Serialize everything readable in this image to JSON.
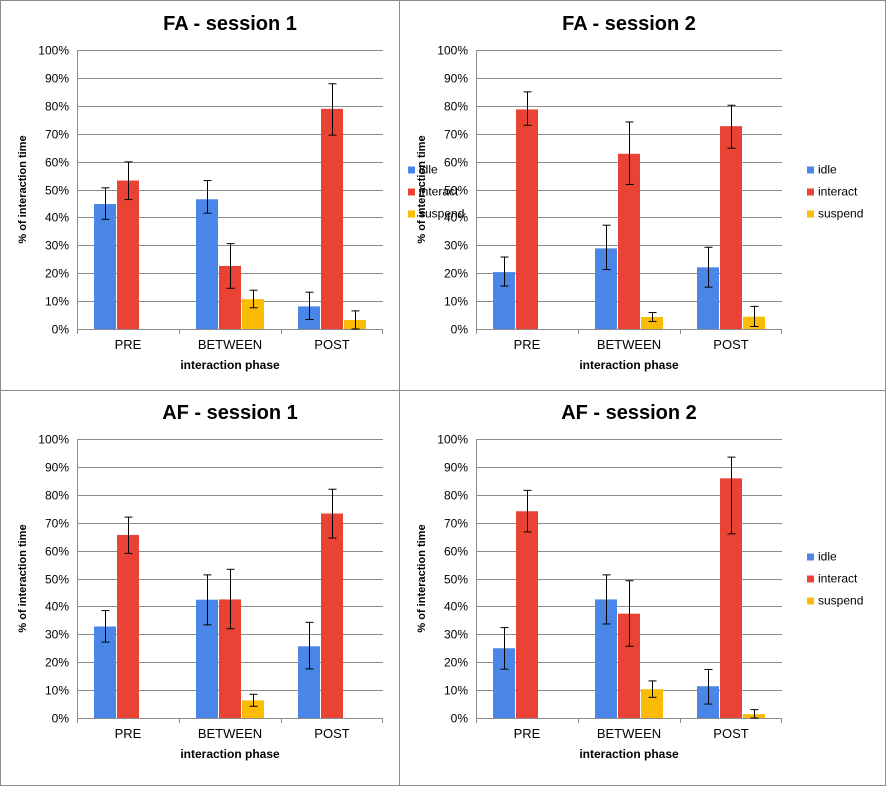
{
  "colors": {
    "idle": "#4a86e8",
    "interact": "#ea4335",
    "suspend": "#fbbc05"
  },
  "chart_data": [
    {
      "type": "bar",
      "title": "FA - session 1",
      "xlabel": "interaction phase",
      "ylabel": "% of interaction time",
      "ylim": [
        0,
        100
      ],
      "yticks": [
        "0%",
        "10%",
        "20%",
        "30%",
        "40%",
        "50%",
        "60%",
        "70%",
        "80%",
        "90%",
        "100%"
      ],
      "categories": [
        "PRE",
        "BETWEEN",
        "POST"
      ],
      "legend_position": "right",
      "grid": true,
      "series": [
        {
          "name": "idle",
          "values": [
            44.8,
            46.5,
            8.1
          ],
          "errors": [
            [
              39.3,
              50.6
            ],
            [
              41.5,
              53.2
            ],
            [
              3.4,
              13.2
            ]
          ]
        },
        {
          "name": "interact",
          "values": [
            53.2,
            22.6,
            78.9
          ],
          "errors": [
            [
              46.4,
              59.9
            ],
            [
              14.6,
              30.6
            ],
            [
              69.5,
              87.9
            ]
          ]
        },
        {
          "name": "suspend",
          "values": [
            0,
            10.7,
            3.2
          ],
          "errors": [
            null,
            [
              7.6,
              13.9
            ],
            [
              0,
              6.5
            ]
          ]
        }
      ]
    },
    {
      "type": "bar",
      "title": "FA - session 2",
      "xlabel": "interaction phase",
      "ylabel": "% of interaction time",
      "ylim": [
        0,
        100
      ],
      "yticks": [
        "0%",
        "10%",
        "20%",
        "30%",
        "40%",
        "50%",
        "60%",
        "70%",
        "80%",
        "90%",
        "100%"
      ],
      "categories": [
        "PRE",
        "BETWEEN",
        "POST"
      ],
      "legend_position": "right",
      "grid": true,
      "series": [
        {
          "name": "idle",
          "values": [
            20.4,
            28.9,
            22.1
          ],
          "errors": [
            [
              15.4,
              25.8
            ],
            [
              21.3,
              37.2
            ],
            [
              15.0,
              29.3
            ]
          ]
        },
        {
          "name": "interact",
          "values": [
            78.7,
            62.8,
            72.7
          ],
          "errors": [
            [
              73.0,
              85.0
            ],
            [
              51.8,
              74.2
            ],
            [
              64.8,
              80.2
            ]
          ]
        },
        {
          "name": "suspend",
          "values": [
            0,
            4.3,
            4.4
          ],
          "errors": [
            null,
            [
              2.7,
              5.9
            ],
            [
              0.9,
              8.1
            ]
          ]
        }
      ]
    },
    {
      "type": "bar",
      "title": "AF - session 1",
      "xlabel": "interaction phase",
      "ylabel": "% of interaction time",
      "ylim": [
        0,
        100
      ],
      "yticks": [
        "0%",
        "10%",
        "20%",
        "30%",
        "40%",
        "50%",
        "60%",
        "70%",
        "80%",
        "90%",
        "100%"
      ],
      "categories": [
        "PRE",
        "BETWEEN",
        "POST"
      ],
      "legend_position": "none",
      "grid": true,
      "series": [
        {
          "name": "idle",
          "values": [
            32.8,
            42.4,
            25.7
          ],
          "errors": [
            [
              27.2,
              38.5
            ],
            [
              33.4,
              51.3
            ],
            [
              17.6,
              34.3
            ]
          ]
        },
        {
          "name": "interact",
          "values": [
            65.6,
            42.5,
            73.3
          ],
          "errors": [
            [
              59.0,
              72.0
            ],
            [
              32.0,
              53.3
            ],
            [
              64.5,
              82.0
            ]
          ]
        },
        {
          "name": "suspend",
          "values": [
            0,
            6.3,
            0
          ],
          "errors": [
            null,
            [
              4.2,
              8.5
            ],
            null
          ]
        }
      ]
    },
    {
      "type": "bar",
      "title": "AF - session 2",
      "xlabel": "interaction phase",
      "ylabel": "% of interaction time",
      "ylim": [
        0,
        100
      ],
      "yticks": [
        "0%",
        "10%",
        "20%",
        "30%",
        "40%",
        "50%",
        "60%",
        "70%",
        "80%",
        "90%",
        "100%"
      ],
      "categories": [
        "PRE",
        "BETWEEN",
        "POST"
      ],
      "legend_position": "right",
      "grid": true,
      "series": [
        {
          "name": "idle",
          "values": [
            25.0,
            42.5,
            11.4
          ],
          "errors": [
            [
              17.5,
              32.4
            ],
            [
              33.7,
              51.3
            ],
            [
              5.0,
              17.4
            ]
          ]
        },
        {
          "name": "interact",
          "values": [
            74.1,
            37.4,
            85.9
          ],
          "errors": [
            [
              66.7,
              81.6
            ],
            [
              25.7,
              49.2
            ],
            [
              66.0,
              93.5
            ]
          ]
        },
        {
          "name": "suspend",
          "values": [
            0,
            10.3,
            1.4
          ],
          "errors": [
            null,
            [
              7.4,
              13.3
            ],
            [
              0,
              3.0
            ]
          ]
        }
      ]
    }
  ]
}
